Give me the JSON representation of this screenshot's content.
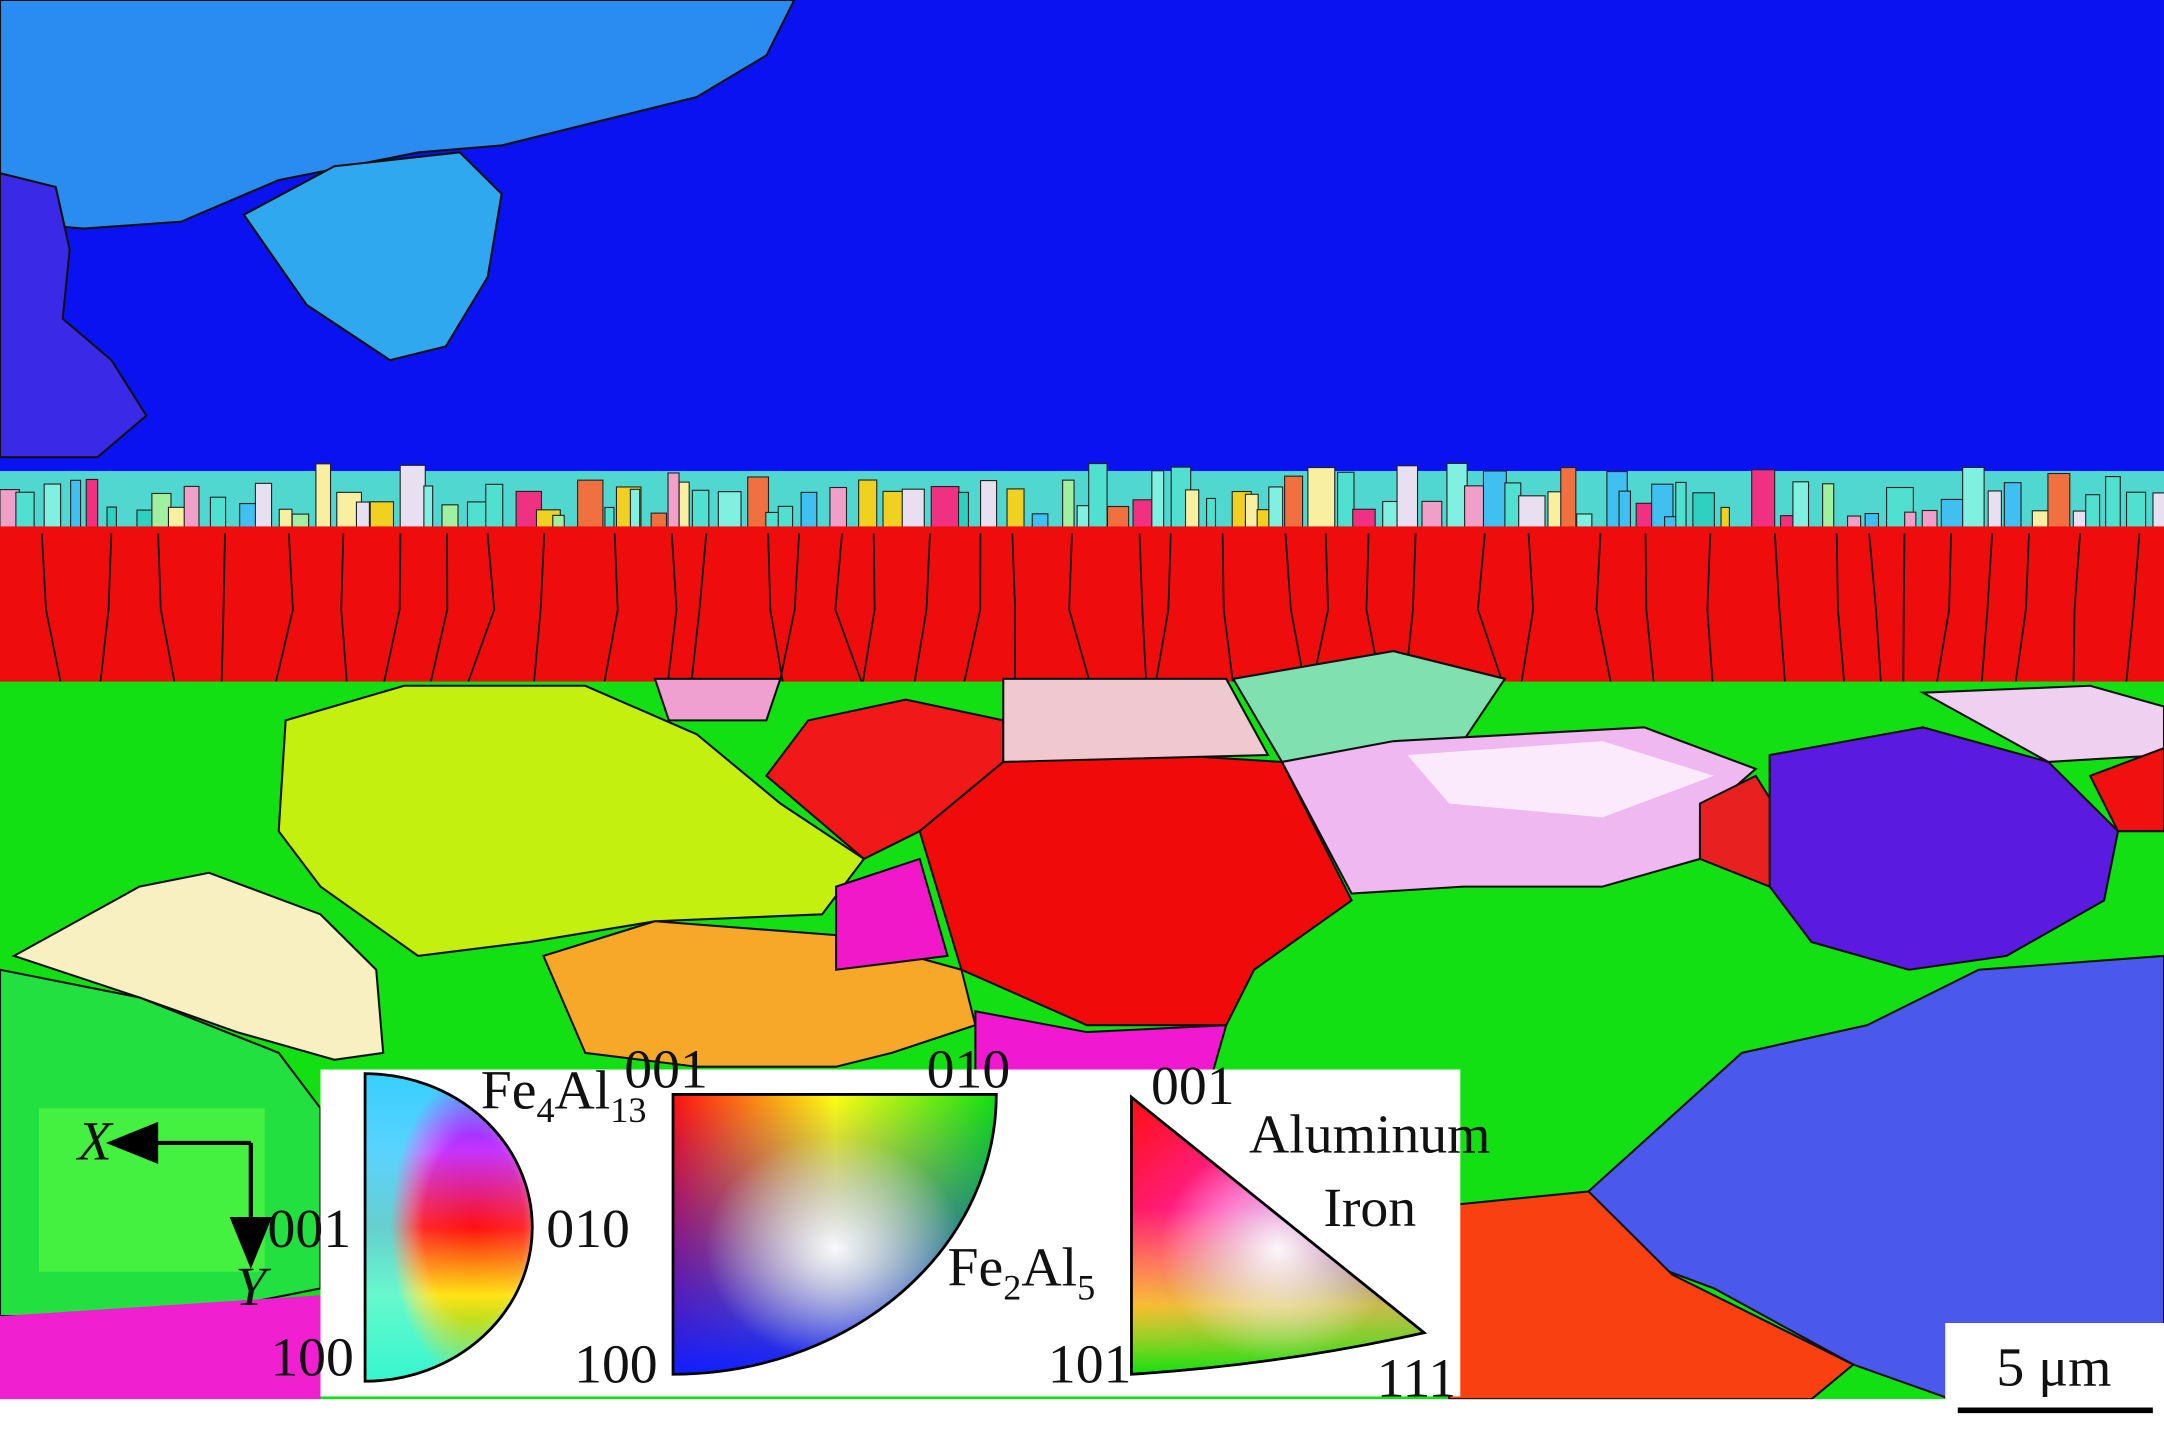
{
  "keys": [
    {
      "formula": [
        "Fe",
        "4",
        "Al",
        "13"
      ],
      "labels": [
        "001",
        "010",
        "100"
      ]
    },
    {
      "formula": [
        "Fe",
        "2",
        "Al",
        "5"
      ],
      "labels": [
        "001",
        "010",
        "100"
      ]
    },
    {
      "phases": [
        "Aluminum",
        "Iron"
      ],
      "labels": [
        "001",
        "101",
        "111"
      ]
    }
  ],
  "axes": {
    "x": "X",
    "y": "Y"
  },
  "scale_bar": "5 μm"
}
